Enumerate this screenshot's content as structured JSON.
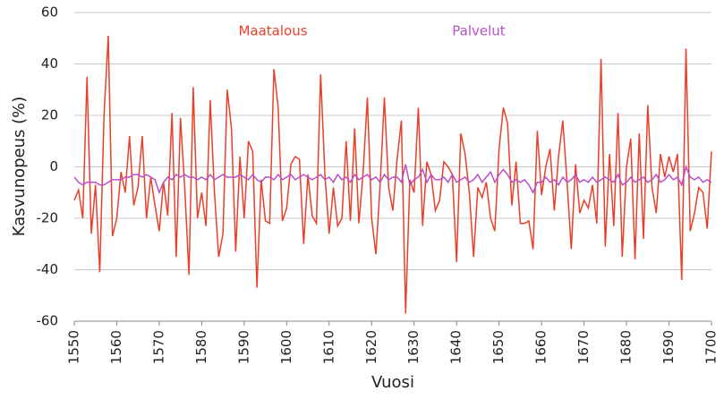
{
  "chart_data": {
    "type": "line",
    "ylabel": "Kasvunopeus (%)",
    "xlabel": "Vuosi",
    "x": [
      1550,
      1551,
      1552,
      1553,
      1554,
      1555,
      1556,
      1557,
      1558,
      1559,
      1560,
      1561,
      1562,
      1563,
      1564,
      1565,
      1566,
      1567,
      1568,
      1569,
      1570,
      1571,
      1572,
      1573,
      1574,
      1575,
      1576,
      1577,
      1578,
      1579,
      1580,
      1581,
      1582,
      1583,
      1584,
      1585,
      1586,
      1587,
      1588,
      1589,
      1590,
      1591,
      1592,
      1593,
      1594,
      1595,
      1596,
      1597,
      1598,
      1599,
      1600,
      1601,
      1602,
      1603,
      1604,
      1605,
      1606,
      1607,
      1608,
      1609,
      1610,
      1611,
      1612,
      1613,
      1614,
      1615,
      1616,
      1617,
      1618,
      1619,
      1620,
      1621,
      1622,
      1623,
      1624,
      1625,
      1626,
      1627,
      1628,
      1629,
      1630,
      1631,
      1632,
      1633,
      1634,
      1635,
      1636,
      1637,
      1638,
      1639,
      1640,
      1641,
      1642,
      1643,
      1644,
      1645,
      1646,
      1647,
      1648,
      1649,
      1650,
      1651,
      1652,
      1653,
      1654,
      1655,
      1656,
      1657,
      1658,
      1659,
      1660,
      1661,
      1662,
      1663,
      1664,
      1665,
      1666,
      1667,
      1668,
      1669,
      1670,
      1671,
      1672,
      1673,
      1674,
      1675,
      1676,
      1677,
      1678,
      1679,
      1680,
      1681,
      1682,
      1683,
      1684,
      1685,
      1686,
      1687,
      1688,
      1689,
      1690,
      1691,
      1692,
      1693,
      1694,
      1695,
      1696,
      1697,
      1698,
      1699,
      1700
    ],
    "series": [
      {
        "name": "Maatalous",
        "color": "#e8402a",
        "values": [
          -13,
          -9,
          -20,
          35,
          -26,
          -7,
          -41,
          20,
          51,
          -27,
          -20,
          -2,
          -10,
          12,
          -15,
          -8,
          12,
          -20,
          -4,
          -15,
          -25,
          -6,
          -19,
          21,
          -35,
          19,
          -8,
          -42,
          31,
          -20,
          -10,
          -23,
          26,
          -10,
          -35,
          -26,
          30,
          15,
          -33,
          4,
          -20,
          10,
          6,
          -47,
          -5,
          -21,
          -22,
          38,
          23,
          -21,
          -16,
          1,
          4,
          3,
          -30,
          -3,
          -19,
          -22,
          36,
          -3,
          -26,
          -8,
          -23,
          -20,
          10,
          -21,
          15,
          -22,
          -2,
          27,
          -20,
          -34,
          -7,
          27,
          -8,
          -17,
          3,
          18,
          -57,
          -5,
          -10,
          23,
          -23,
          2,
          -3,
          -17,
          -13,
          2,
          0,
          -3,
          -37,
          13,
          5,
          -10,
          -35,
          -8,
          -12,
          -6,
          -20,
          -25,
          7,
          23,
          17,
          -15,
          2,
          -22,
          -22,
          -21,
          -32,
          14,
          -11,
          0,
          7,
          -17,
          4,
          18,
          -6,
          -32,
          1,
          -18,
          -13,
          -16,
          -7,
          -22,
          42,
          -31,
          5,
          -23,
          21,
          -35,
          0,
          11,
          -36,
          13,
          -28,
          24,
          -8,
          -18,
          5,
          -4,
          4,
          -2,
          5,
          -44,
          46,
          -25,
          -18,
          -8,
          -10,
          -24,
          6
        ]
      },
      {
        "name": "Palvelut",
        "color": "#b84fc9",
        "values": [
          -4,
          -6,
          -7,
          -6,
          -6,
          -6,
          -7,
          -7,
          -6,
          -5,
          -5,
          -5,
          -4,
          -4,
          -3,
          -3,
          -4,
          -3,
          -4,
          -5,
          -10,
          -6,
          -4,
          -5,
          -3,
          -4,
          -3,
          -4,
          -4,
          -5,
          -4,
          -5,
          -3,
          -5,
          -4,
          -3,
          -4,
          -4,
          -4,
          -3,
          -4,
          -5,
          -3,
          -5,
          -6,
          -4,
          -4,
          -5,
          -3,
          -5,
          -4,
          -3,
          -5,
          -4,
          -3,
          -4,
          -5,
          -4,
          -3,
          -5,
          -4,
          -6,
          -3,
          -5,
          -4,
          -6,
          -3,
          -5,
          -4,
          -3,
          -5,
          -4,
          -6,
          -3,
          -5,
          -4,
          -4,
          -6,
          1,
          -7,
          -5,
          -4,
          -1,
          -6,
          -3,
          -5,
          -5,
          -4,
          -6,
          -3,
          -6,
          -5,
          -4,
          -6,
          -5,
          -3,
          -6,
          -4,
          -2,
          -6,
          -3,
          -1,
          -3,
          -6,
          -5,
          -6,
          -5,
          -7,
          -10,
          -6,
          -6,
          -4,
          -6,
          -5,
          -7,
          -4,
          -6,
          -5,
          -3,
          -6,
          -5,
          -6,
          -4,
          -6,
          -5,
          -4,
          -5,
          -6,
          -3,
          -7,
          -6,
          -4,
          -6,
          -5,
          -4,
          -6,
          -5,
          -3,
          -6,
          -5,
          -3,
          -5,
          -4,
          -7,
          0,
          -4,
          -5,
          -4,
          -6,
          -5,
          -6
        ]
      }
    ],
    "xlim": [
      1550,
      1700
    ],
    "xticks": [
      1550,
      1560,
      1570,
      1580,
      1590,
      1600,
      1610,
      1620,
      1630,
      1640,
      1650,
      1660,
      1670,
      1680,
      1690,
      1700
    ],
    "ylim": [
      -60,
      60
    ],
    "yticks": [
      -60,
      -40,
      -20,
      0,
      20,
      40,
      60
    ],
    "grid": true
  }
}
